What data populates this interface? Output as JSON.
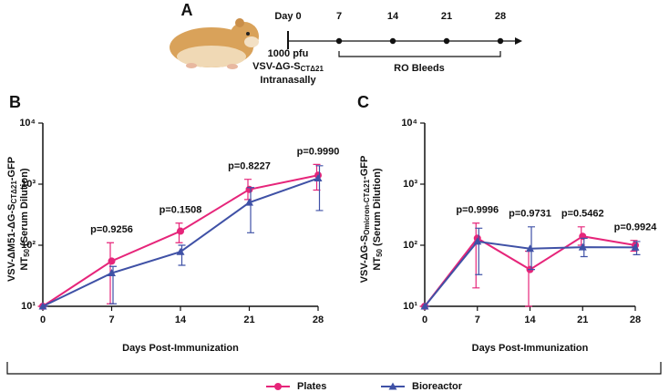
{
  "panel_a": {
    "letter": "A",
    "day0": "Day 0",
    "days": [
      7,
      14,
      21,
      28
    ],
    "dose": "1000 pfu",
    "virus": [
      "VSV-ΔG-S",
      "CTΔ21"
    ],
    "route": "Intranasally",
    "bleeds": "RO Bleeds"
  },
  "chart_data": [
    {
      "type": "line",
      "letter": "B",
      "ylog": true,
      "ylabel": {
        "line1": [
          "VSV-ΔM51-ΔG-S",
          "CTΔ21",
          "-GFP"
        ],
        "line2": [
          "NT",
          "50",
          " (Serum Dilution)"
        ]
      },
      "xlabel": "Days Post-Immunization",
      "x": [
        0,
        7,
        14,
        21,
        28
      ],
      "xlim": [
        0,
        28
      ],
      "xticks": [
        0,
        7,
        14,
        21,
        28
      ],
      "ylim": [
        10,
        10000
      ],
      "yticks": [
        {
          "value": 10,
          "label": "10¹"
        },
        {
          "value": 100,
          "label": "10²"
        },
        {
          "value": 1000,
          "label": "10³"
        },
        {
          "value": 10000,
          "label": "10⁴"
        }
      ],
      "p_values": [
        null,
        "p=0.9256",
        "p=0.1508",
        "p=0.8227",
        "p=0.9990"
      ],
      "series": [
        {
          "name": "Plates",
          "color": "#e6257a",
          "marker": "circle",
          "values": [
            10,
            55,
            170,
            820,
            1400
          ],
          "lower": [
            10,
            11,
            110,
            560,
            800
          ],
          "upper": [
            10,
            110,
            230,
            1200,
            2100
          ]
        },
        {
          "name": "Bioreactor",
          "color": "#3f51a6",
          "marker": "triangle",
          "values": [
            10,
            35,
            78,
            500,
            1250
          ],
          "lower": [
            10,
            11,
            47,
            160,
            370
          ],
          "upper": [
            10,
            45,
            100,
            880,
            2000
          ]
        }
      ]
    },
    {
      "type": "line",
      "letter": "C",
      "ylog": true,
      "ylabel": {
        "line1": [
          "VSV-ΔG-S",
          "Omicron-CTΔ21",
          "-GFP"
        ],
        "line2": [
          "NT",
          "50",
          " (Serum Dilution)"
        ]
      },
      "xlabel": "Days Post-Immunization",
      "x": [
        0,
        7,
        14,
        21,
        28
      ],
      "xlim": [
        0,
        28
      ],
      "xticks": [
        0,
        7,
        14,
        21,
        28
      ],
      "ylim": [
        10,
        10000
      ],
      "yticks": [
        {
          "value": 10,
          "label": "10¹"
        },
        {
          "value": 100,
          "label": "10²"
        },
        {
          "value": 1000,
          "label": "10³"
        },
        {
          "value": 10000,
          "label": "10⁴"
        }
      ],
      "p_values": [
        null,
        "p=0.9996",
        "p=0.9731",
        "p=0.5462",
        "p=0.9924"
      ],
      "series": [
        {
          "name": "Plates",
          "color": "#e6257a",
          "marker": "circle",
          "values": [
            10,
            130,
            40,
            140,
            100
          ],
          "lower": [
            10,
            20,
            10,
            100,
            80
          ],
          "upper": [
            10,
            230,
            80,
            200,
            120
          ]
        },
        {
          "name": "Bioreactor",
          "color": "#3f51a6",
          "marker": "triangle",
          "values": [
            10,
            115,
            88,
            93,
            92
          ],
          "lower": [
            10,
            33,
            40,
            65,
            70
          ],
          "upper": [
            10,
            190,
            200,
            130,
            115
          ]
        }
      ]
    }
  ]
}
